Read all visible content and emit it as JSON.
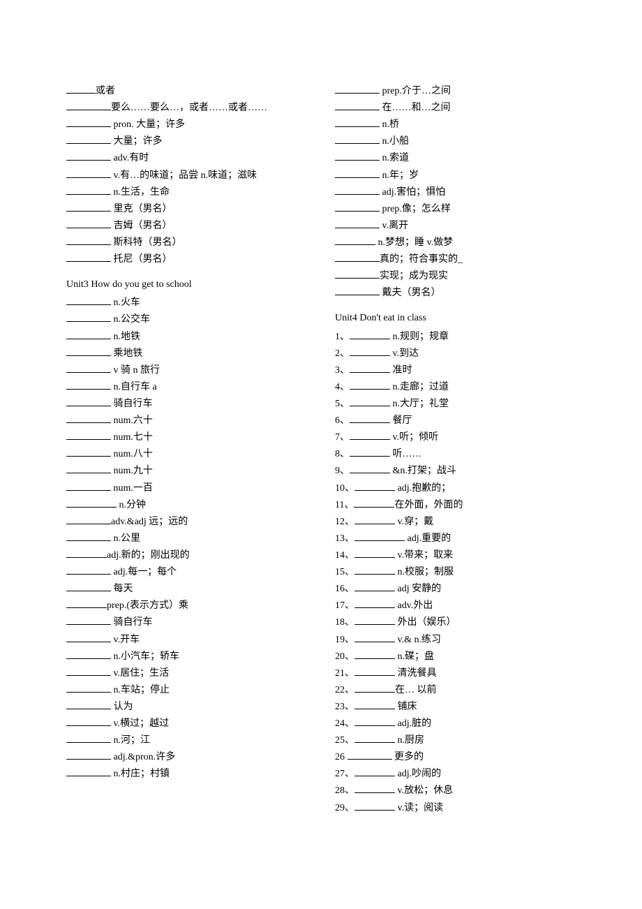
{
  "topLeft": [
    {
      "blank": "s",
      "text": "或者"
    },
    {
      "blank": "l",
      "text": "要么……要么…，或者……或者……",
      "wrap": true
    },
    {
      "blank": "l",
      "text": " pron. 大量；许多"
    },
    {
      "blank": "l",
      "text": "  大量；许多"
    },
    {
      "blank": "l",
      "text": "  adv.有时"
    },
    {
      "blank": "l",
      "text": " v.有…的味道；品尝 n.味道；滋味",
      "wrap": true
    },
    {
      "blank": "l",
      "text": "  n.生活，生命"
    },
    {
      "blank": "l",
      "text": "  里克（男名）"
    },
    {
      "blank": "l",
      "text": "   吉姆（男名）"
    },
    {
      "blank": "l",
      "text": "   斯科特（男名）"
    },
    {
      "blank": "l",
      "text": "   托尼（男名）"
    }
  ],
  "topRight": [
    {
      "blank": "l",
      "text": " prep.介于…之间"
    },
    {
      "blank": "l",
      "text": "  在……和…之间"
    },
    {
      "blank": "l",
      "text": "   n.桥"
    },
    {
      "blank": "l",
      "text": "  n.小船"
    },
    {
      "blank": "l",
      "text": "  n.索道"
    },
    {
      "blank": "l",
      "text": "  n.年；岁"
    },
    {
      "blank": "l",
      "text": "   adj.害怕；惧怕"
    },
    {
      "blank": "l",
      "text": "   prep.像；怎么样"
    },
    {
      "blank": "l",
      "text": "   v.离开"
    },
    {
      "blank": "m",
      "text": " n.梦想；睡 v.做梦"
    },
    {
      "blank": "l",
      "text": "真的；符合事实的_"
    },
    {
      "blank": "l",
      "text": "实现；成为现实"
    },
    {
      "blank": "l",
      "text": " 戴夫（男名）"
    }
  ],
  "unit3Title": "Unit3 How do you get to school",
  "unit3": [
    {
      "blank": "l",
      "text": "  n.火车"
    },
    {
      "blank": "l",
      "text": "  n.公交车"
    },
    {
      "blank": "l",
      "text": "  n.地铁"
    },
    {
      "blank": "l",
      "text": "   乘地铁"
    },
    {
      "blank": "l",
      "text": "  v 骑  n 旅行"
    },
    {
      "blank": "l",
      "text": "  n.自行车 a"
    },
    {
      "blank": "l",
      "text": "  骑自行车"
    },
    {
      "blank": "l",
      "text": "   num.六十"
    },
    {
      "blank": "l",
      "text": "   num.七十"
    },
    {
      "blank": "l",
      "text": "    num.八十"
    },
    {
      "blank": "l",
      "text": "  num.九十"
    },
    {
      "blank": "l",
      "text": "   num.一百"
    },
    {
      "blank": "xl",
      "text": "   n.分钟"
    },
    {
      "blank": "l",
      "text": "adv.&adj 远；远的"
    },
    {
      "blank": "l",
      "text": "  n.公里"
    },
    {
      "blank": "m",
      "text": "adj.新的；刚出现的"
    },
    {
      "blank": "l",
      "text": " adj.每一；每个"
    },
    {
      "blank": "l",
      "text": "   每天"
    },
    {
      "blank": "m",
      "text": "prep.(表示方式）乘"
    },
    {
      "blank": "l",
      "text": " 骑自行车"
    },
    {
      "blank": "l",
      "text": "  v.开车"
    },
    {
      "blank": "l",
      "text": " n.小汽车；轿车"
    },
    {
      "blank": "l",
      "text": "   v.居住；生活"
    },
    {
      "blank": "l",
      "text": "   n.车站；停止"
    },
    {
      "blank": "l",
      "text": "    认为"
    },
    {
      "blank": "l",
      "text": "   v.横过；越过"
    },
    {
      "blank": "l",
      "text": " n.河；江"
    },
    {
      "blank": "l",
      "text": "   adj.&pron.许多"
    },
    {
      "blank": "l",
      "text": "   n.村庄；村镇"
    }
  ],
  "unit4Title": "Unit4 Don't eat in class",
  "unit4": [
    {
      "num": "1、",
      "blank": "m",
      "text": " n.规则；规章"
    },
    {
      "num": "2、",
      "blank": "m",
      "text": "  v.到达"
    },
    {
      "num": "3、",
      "blank": "m",
      "text": "    准时"
    },
    {
      "num": "4、",
      "blank": "m",
      "text": "    n.走廊；过道"
    },
    {
      "num": "5、",
      "blank": "m",
      "text": "   n.大厅；礼堂"
    },
    {
      "num": "6、",
      "blank": "m",
      "text": "   餐厅"
    },
    {
      "num": "7、",
      "blank": "m",
      "text": "     v.听；倾听"
    },
    {
      "num": "8、",
      "blank": "m",
      "text": "    听……"
    },
    {
      "num": "9、",
      "blank": "m",
      "text": "  &n.打架；战斗"
    },
    {
      "num": "10、",
      "blank": "m",
      "text": " adj.抱歉的；"
    },
    {
      "num": "11、",
      "blank": "m",
      "text": "在外面，外面的"
    },
    {
      "num": "12、",
      "blank": "m",
      "text": "    v.穿；戴"
    },
    {
      "num": "13、",
      "blank": "xl",
      "text": "    adj.重要的"
    },
    {
      "num": "14、",
      "blank": "m",
      "text": "    v.带来；取来"
    },
    {
      "num": "15、",
      "blank": "m",
      "text": "   n.校服；制服"
    },
    {
      "num": "16、",
      "blank": "m",
      "text": "    adj 安静的"
    },
    {
      "num": "17、",
      "blank": "m",
      "text": "   adv.外出"
    },
    {
      "num": "18、",
      "blank": "m",
      "text": "    外出（娱乐）"
    },
    {
      "num": "19、",
      "blank": "m",
      "text": "    v.& n.练习"
    },
    {
      "num": "20、",
      "blank": "m",
      "text": "    n.碟；盘"
    },
    {
      "num": "21、",
      "blank": "m",
      "text": "   清洗餐具"
    },
    {
      "num": "22、",
      "blank": "m",
      "text": "在… 以前"
    },
    {
      "num": "23、",
      "blank": "m",
      "text": "    铺床"
    },
    {
      "num": "24、",
      "blank": "m",
      "text": " adj.脏的"
    },
    {
      "num": "25、",
      "blank": "m",
      "text": "     n.厨房"
    },
    {
      "num": "26 ",
      "numPlain": true,
      "blank": "l",
      "text": "   更多的"
    },
    {
      "num": "27、",
      "blank": "m",
      "text": "   adj.吵闹的"
    },
    {
      "num": "28、",
      "blank": "m",
      "text": "   v.放松；休息"
    },
    {
      "num": "29、",
      "blank": "m",
      "text": "   v.读；阅读"
    }
  ]
}
